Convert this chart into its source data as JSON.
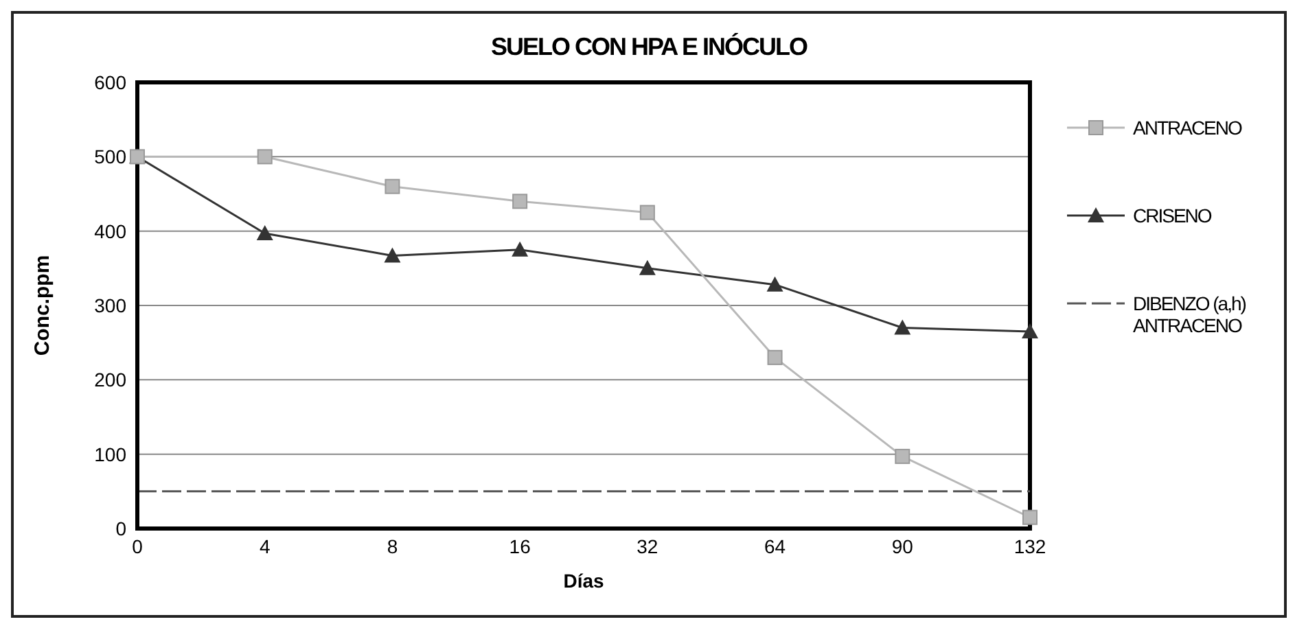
{
  "chart_data": {
    "type": "line",
    "title": "SUELO CON HPA E INÓCULO",
    "xlabel": "Días",
    "ylabel": "Conc.ppm",
    "categories": [
      "0",
      "4",
      "8",
      "16",
      "32",
      "64",
      "90",
      "132"
    ],
    "series": [
      {
        "name": "ANTRACENO",
        "color": "#b8b8b8",
        "marker": "square",
        "line_style": "solid",
        "values": [
          500,
          500,
          460,
          440,
          425,
          230,
          97,
          15
        ]
      },
      {
        "name": "CRISENO",
        "color": "#333333",
        "marker": "triangle",
        "line_style": "solid",
        "values": [
          500,
          397,
          367,
          375,
          350,
          328,
          270,
          265
        ]
      },
      {
        "name": "DIBENZO (a,h) ANTRACENO",
        "color": "#555555",
        "marker": "none",
        "line_style": "dashed",
        "values": [
          50,
          50,
          50,
          50,
          50,
          50,
          50,
          50
        ]
      }
    ],
    "ylim": [
      0,
      600
    ],
    "yticks": [
      0,
      100,
      200,
      300,
      400,
      500,
      600
    ],
    "grid": "y",
    "legend": "right"
  }
}
